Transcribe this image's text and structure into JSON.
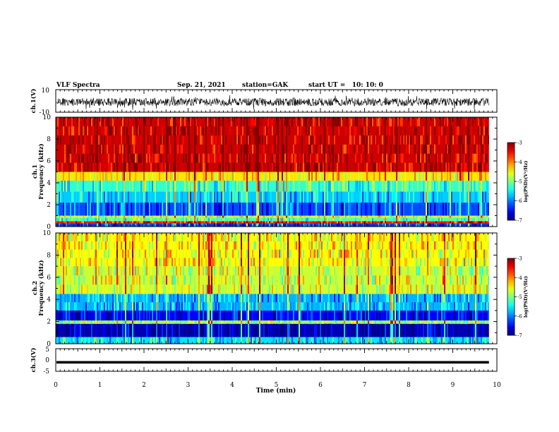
{
  "header": {
    "title": "VLF Spectra",
    "date": "Sep. 21, 2021",
    "station": "station=GAK",
    "start_time": "start UT =   10: 10: 0"
  },
  "chart_data": [
    {
      "type": "line",
      "panel": "ch1-waveform",
      "ylabel": "ch.1(V)",
      "ylim": [
        -10,
        10
      ],
      "yticks": [
        "10",
        "-10"
      ],
      "xlim": [
        0,
        10
      ],
      "data_end_min": 9.82,
      "mean": -1,
      "spread": 3.5
    },
    {
      "type": "heatmap",
      "panel": "ch1-spectrogram",
      "ylabel": "ch.1\nFrequency (kHz)",
      "ylim": [
        0,
        10
      ],
      "yticks": [
        "0",
        "2",
        "4",
        "6",
        "8",
        "10"
      ],
      "xlim": [
        0,
        10
      ],
      "data_end_min": 9.82,
      "colorbar": {
        "label": "log(PSD)(V²/Hz)",
        "range": [
          -7,
          -3
        ],
        "ticks": [
          "-3",
          "-4",
          "-5",
          "-6",
          "-7"
        ]
      },
      "bands_kHz_logPSD": [
        {
          "from": 0,
          "to": 0.3,
          "value": -6.3
        },
        {
          "from": 0.3,
          "to": 0.5,
          "value": -3.6
        },
        {
          "from": 0.5,
          "to": 0.8,
          "value": -5.2
        },
        {
          "from": 0.8,
          "to": 1.0,
          "value": -4.7
        },
        {
          "from": 1.0,
          "to": 2.2,
          "value": -6.2
        },
        {
          "from": 2.2,
          "to": 3.2,
          "value": -5.7
        },
        {
          "from": 3.2,
          "to": 4.2,
          "value": -5.3
        },
        {
          "from": 4.2,
          "to": 5.0,
          "value": -4.4
        },
        {
          "from": 5.0,
          "to": 10.0,
          "value": -3.3
        }
      ]
    },
    {
      "type": "heatmap",
      "panel": "ch2-spectrogram",
      "ylabel": "ch.2\nFrequency (kHz)",
      "ylim": [
        0,
        10
      ],
      "yticks": [
        "0",
        "2",
        "4",
        "6",
        "8",
        "10"
      ],
      "xlim": [
        0,
        10
      ],
      "data_end_min": 9.82,
      "colorbar": {
        "label": "log(PSD)(V²/Hz)",
        "range": [
          -7,
          -3
        ],
        "ticks": [
          "-3",
          "-4",
          "-5",
          "-6",
          "-7"
        ]
      },
      "bands_kHz_logPSD": [
        {
          "from": 0,
          "to": 0.6,
          "value": -5.6
        },
        {
          "from": 0.6,
          "to": 1.8,
          "value": -6.8
        },
        {
          "from": 1.8,
          "to": 2.1,
          "value": -4.9
        },
        {
          "from": 2.1,
          "to": 3.0,
          "value": -6.5
        },
        {
          "from": 3.0,
          "to": 4.5,
          "value": -5.8
        },
        {
          "from": 4.5,
          "to": 7.0,
          "value": -4.7
        },
        {
          "from": 7.0,
          "to": 10.0,
          "value": -4.5
        }
      ]
    },
    {
      "type": "line",
      "panel": "ch3-waveform",
      "ylabel": "ch.3(V)",
      "ylim": [
        -5,
        5
      ],
      "yticks": [
        "5",
        "0",
        "-5"
      ],
      "xlim": [
        0,
        10
      ],
      "data_end_min": 9.82,
      "level": -1
    }
  ],
  "xaxis": {
    "label": "Time (min)",
    "ticks": [
      "0",
      "1",
      "2",
      "3",
      "4",
      "5",
      "6",
      "7",
      "8",
      "9",
      "10"
    ]
  }
}
